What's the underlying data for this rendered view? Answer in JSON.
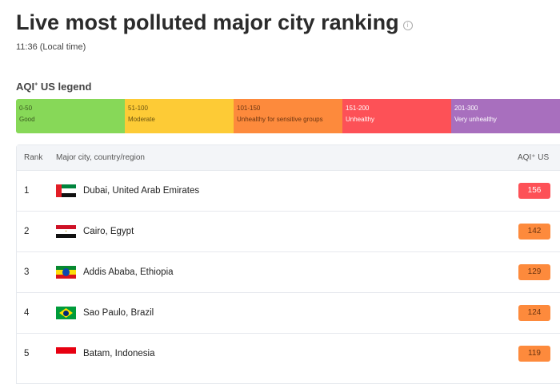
{
  "header": {
    "title": "Live most polluted major city ranking",
    "time": "11:36 (Local time)",
    "legend_title": "AQI",
    "legend_sup": "+",
    "legend_suffix": " US legend"
  },
  "legend": [
    {
      "range": "0-50",
      "label": "Good",
      "color": "#87d858",
      "text": "#3a5a20"
    },
    {
      "range": "51-100",
      "label": "Moderate",
      "color": "#fdcb36",
      "text": "#6b5310"
    },
    {
      "range": "101-150",
      "label": "Unhealthy for sensitive groups",
      "color": "#fd8a3c",
      "text": "#6b3410"
    },
    {
      "range": "151-200",
      "label": "Unhealthy",
      "color": "#fd5157",
      "text": "#ffffff"
    },
    {
      "range": "201-300",
      "label": "Very unhealthy",
      "color": "#a86fbe",
      "text": "#ffffff"
    }
  ],
  "table": {
    "headers": {
      "rank": "Rank",
      "city": "Major city, country/region",
      "aqi": "AQI⁺ US"
    },
    "rows": [
      {
        "rank": "1",
        "city": "Dubai, United Arab Emirates",
        "flag": "uae-flag",
        "aqi": "156",
        "color": "#fd5157",
        "text": "#fff"
      },
      {
        "rank": "2",
        "city": "Cairo, Egypt",
        "flag": "egypt-flag",
        "aqi": "142",
        "color": "#fd8a3c",
        "text": "#6b3410"
      },
      {
        "rank": "3",
        "city": "Addis Ababa, Ethiopia",
        "flag": "ethiopia-flag",
        "aqi": "129",
        "color": "#fd8a3c",
        "text": "#6b3410"
      },
      {
        "rank": "4",
        "city": "Sao Paulo, Brazil",
        "flag": "brazil-flag",
        "aqi": "124",
        "color": "#fd8a3c",
        "text": "#6b3410"
      },
      {
        "rank": "5",
        "city": "Batam, Indonesia",
        "flag": "indonesia-flag",
        "aqi": "119",
        "color": "#fd8a3c",
        "text": "#6b3410"
      }
    ]
  }
}
